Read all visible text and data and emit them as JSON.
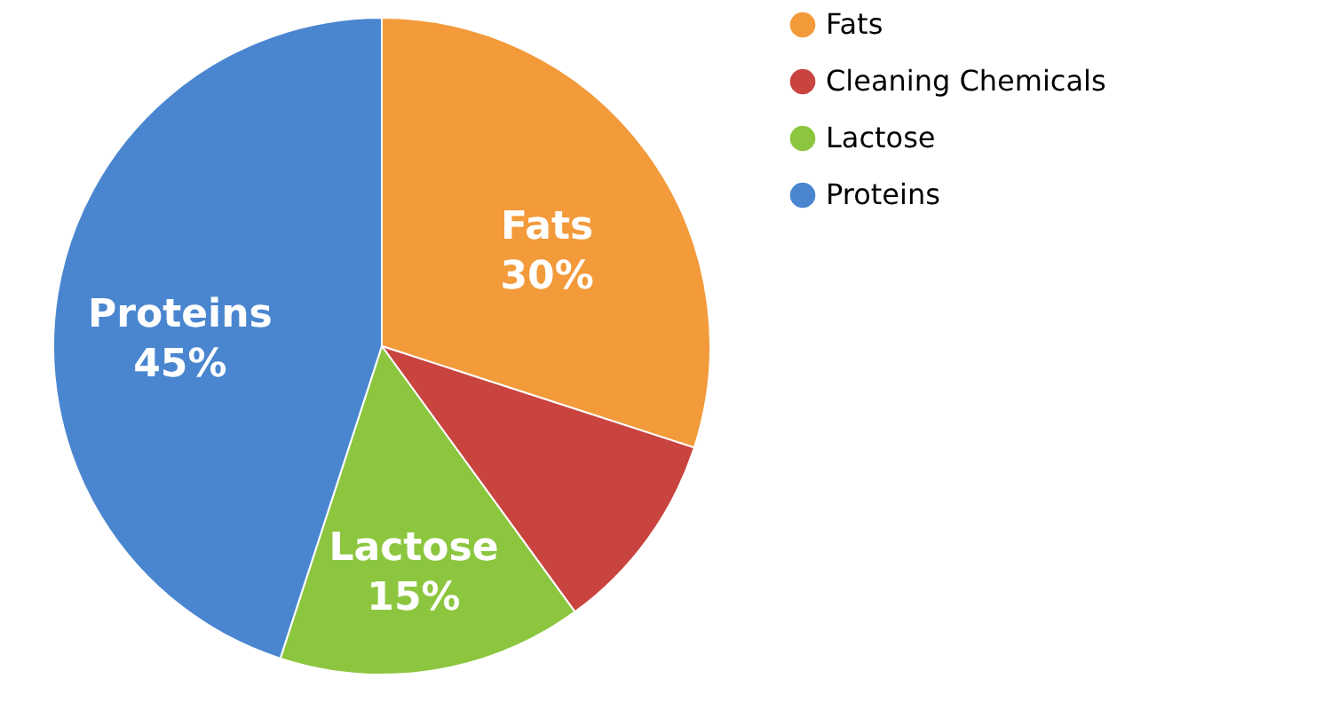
{
  "chart_data": {
    "type": "pie",
    "categories": [
      "Fats",
      "Cleaning Chemicals",
      "Lactose",
      "Proteins"
    ],
    "values": [
      30,
      10,
      15,
      45
    ],
    "colors": [
      "#f39a3a",
      "#c9433f",
      "#8cc63f",
      "#4a86d0"
    ],
    "value_labels": [
      "30%",
      null,
      "15%",
      "45%"
    ],
    "legend": "right"
  }
}
